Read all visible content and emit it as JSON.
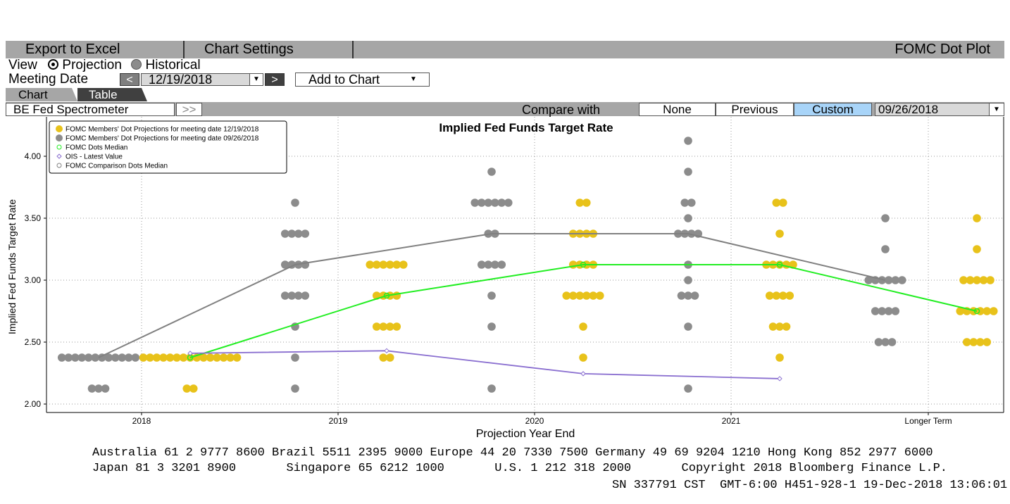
{
  "toolbar": {
    "export_label": "Export to Excel",
    "settings_label": "Chart Settings",
    "title": "FOMC Dot Plot"
  },
  "view": {
    "label": "View",
    "projection": "Projection",
    "historical": "Historical"
  },
  "meeting": {
    "label": "Meeting Date",
    "prev": "<",
    "date": "12/19/2018",
    "next": ">",
    "add_label": "Add to Chart"
  },
  "tabs": {
    "chart": "Chart",
    "table": "Table"
  },
  "compare": {
    "source": "BE Fed Spectrometer",
    "more": ">>",
    "label": "Compare with",
    "none": "None",
    "previous": "Previous",
    "custom": "Custom",
    "date": "09/26/2018"
  },
  "colors": {
    "current": "#e8c21a",
    "comparison": "#8c8c8c",
    "median": "#22ee22",
    "ois": "#8a6fd0",
    "comparison_median": "#808080",
    "custom_bg": "#a8d4f8"
  },
  "chart_data": {
    "type": "scatter",
    "title": "Implied Fed Funds Target Rate",
    "xlabel": "Projection Year End",
    "ylabel": "Implied Fed Funds Target Rate",
    "categories": [
      "2018",
      "2019",
      "2020",
      "2021",
      "Longer Term"
    ],
    "ylim": [
      1.95,
      4.3
    ],
    "yticks": [
      "2.00",
      "2.50",
      "3.00",
      "3.50",
      "4.00"
    ],
    "grid": true,
    "legend_position": "top-left",
    "legend": [
      "FOMC Members' Dot Projections for meeting date 12/19/2018",
      "FOMC Members' Dot Projections for meeting date 09/26/2018",
      "FOMC Dots Median",
      "OIS - Latest Value",
      "FOMC Comparison Dots Median"
    ],
    "current_dots": [
      [
        {
          "rate": 2.375,
          "count": 15
        },
        {
          "rate": 2.125,
          "count": 2
        }
      ],
      [
        {
          "rate": 3.125,
          "count": 6
        },
        {
          "rate": 2.875,
          "count": 4
        },
        {
          "rate": 2.625,
          "count": 4
        },
        {
          "rate": 2.375,
          "count": 2
        }
      ],
      [
        {
          "rate": 3.625,
          "count": 2
        },
        {
          "rate": 3.375,
          "count": 4
        },
        {
          "rate": 3.125,
          "count": 4
        },
        {
          "rate": 2.875,
          "count": 6
        },
        {
          "rate": 2.625,
          "count": 1
        },
        {
          "rate": 2.375,
          "count": 1
        }
      ],
      [
        {
          "rate": 3.625,
          "count": 2
        },
        {
          "rate": 3.375,
          "count": 1
        },
        {
          "rate": 3.125,
          "count": 5
        },
        {
          "rate": 2.875,
          "count": 4
        },
        {
          "rate": 2.625,
          "count": 3
        },
        {
          "rate": 2.375,
          "count": 1
        }
      ],
      [
        {
          "rate": 3.5,
          "count": 1
        },
        {
          "rate": 3.25,
          "count": 1
        },
        {
          "rate": 3.0,
          "count": 5
        },
        {
          "rate": 2.75,
          "count": 6
        },
        {
          "rate": 2.5,
          "count": 4
        }
      ]
    ],
    "comparison_dots": [
      [
        {
          "rate": 2.375,
          "count": 12
        },
        {
          "rate": 2.125,
          "count": 3
        }
      ],
      [
        {
          "rate": 3.625,
          "count": 1
        },
        {
          "rate": 3.375,
          "count": 4
        },
        {
          "rate": 3.125,
          "count": 4
        },
        {
          "rate": 2.875,
          "count": 4
        },
        {
          "rate": 2.625,
          "count": 1
        },
        {
          "rate": 2.375,
          "count": 1
        },
        {
          "rate": 2.125,
          "count": 1
        }
      ],
      [
        {
          "rate": 3.875,
          "count": 1
        },
        {
          "rate": 3.625,
          "count": 6
        },
        {
          "rate": 3.375,
          "count": 2
        },
        {
          "rate": 3.125,
          "count": 4
        },
        {
          "rate": 2.875,
          "count": 1
        },
        {
          "rate": 2.625,
          "count": 1
        },
        {
          "rate": 2.125,
          "count": 1
        }
      ],
      [
        {
          "rate": 4.125,
          "count": 1
        },
        {
          "rate": 3.875,
          "count": 1
        },
        {
          "rate": 3.625,
          "count": 2
        },
        {
          "rate": 3.5,
          "count": 1
        },
        {
          "rate": 3.375,
          "count": 4
        },
        {
          "rate": 3.125,
          "count": 1
        },
        {
          "rate": 3.0,
          "count": 1
        },
        {
          "rate": 2.875,
          "count": 3
        },
        {
          "rate": 2.625,
          "count": 1
        },
        {
          "rate": 2.125,
          "count": 1
        }
      ],
      [
        {
          "rate": 3.5,
          "count": 1
        },
        {
          "rate": 3.25,
          "count": 1
        },
        {
          "rate": 3.0,
          "count": 6
        },
        {
          "rate": 2.75,
          "count": 4
        },
        {
          "rate": 2.5,
          "count": 3
        }
      ]
    ],
    "median": [
      2.375,
      2.875,
      3.125,
      3.125,
      2.75
    ],
    "comparison_median": [
      2.375,
      3.125,
      3.375,
      3.375,
      3.0
    ],
    "ois": [
      {
        "x": "2018",
        "value": 2.41
      },
      {
        "x": "2019",
        "value": 2.43
      },
      {
        "x": "2020",
        "value": 2.245
      },
      {
        "x": "2021",
        "value": 2.205
      }
    ]
  },
  "footer": {
    "line1": "Australia 61 2 9777 8600 Brazil 5511 2395 9000 Europe 44 20 7330 7500 Germany 49 69 9204 1210 Hong Kong 852 2977 6000",
    "line2": "Japan 81 3 3201 8900       Singapore 65 6212 1000       U.S. 1 212 318 2000       Copyright 2018 Bloomberg Finance L.P.",
    "line3": "SN 337791 CST  GMT-6:00 H451-928-1 19-Dec-2018 13:06:01"
  }
}
